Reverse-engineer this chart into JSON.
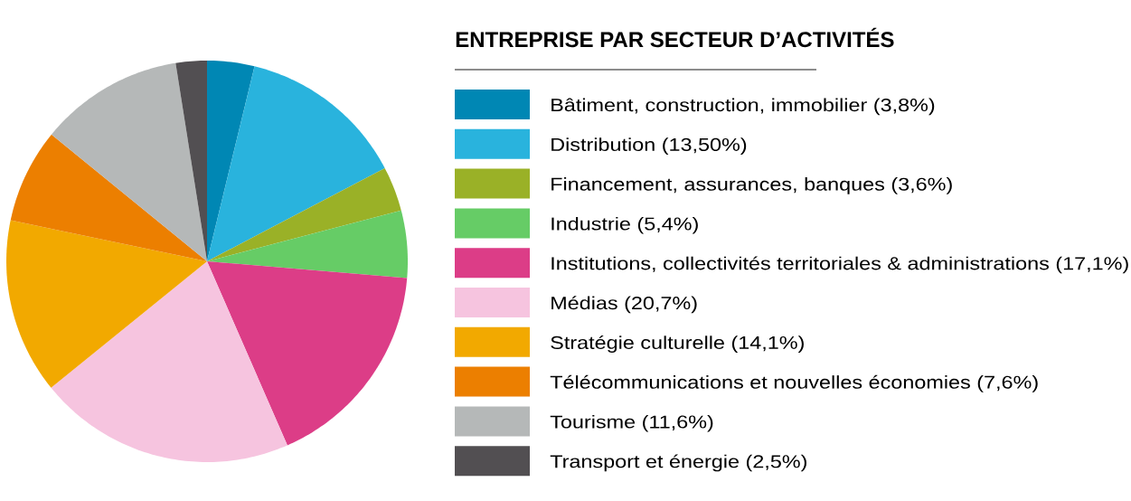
{
  "chart_data": {
    "type": "pie",
    "title": "ENTREPRISE PAR SECTEUR D’ACTIVITÉS",
    "categories": [
      "Bâtiment, construction, immobilier (3,8%)",
      "Distribution (13,50%)",
      "Financement, assurances, banques (3,6%)",
      "Industrie (5,4%)",
      "Institutions, collectivités territoriales & administrations (17,1%)",
      "Médias (20,7%)",
      "Stratégie culturelle (14,1%)",
      "Télécommunications et nouvelles économies (7,6%)",
      "Tourisme (11,6%)",
      "Transport et énergie (2,5%)"
    ],
    "values": [
      3.8,
      13.5,
      3.6,
      5.4,
      17.1,
      20.7,
      14.1,
      7.6,
      11.6,
      2.5
    ],
    "colors": [
      "#0087b4",
      "#29b3dd",
      "#9ab127",
      "#66cc66",
      "#dc3d87",
      "#f6c4df",
      "#f2a900",
      "#ec7f00",
      "#b5b8b8",
      "#524f52"
    ],
    "legend": "right"
  }
}
